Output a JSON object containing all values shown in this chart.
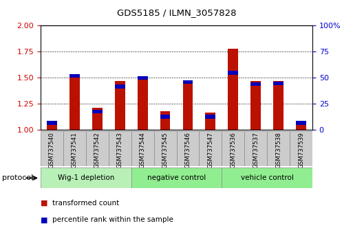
{
  "title": "GDS5185 / ILMN_3057828",
  "samples": [
    "GSM737540",
    "GSM737541",
    "GSM737542",
    "GSM737543",
    "GSM737544",
    "GSM737545",
    "GSM737546",
    "GSM737547",
    "GSM737536",
    "GSM737537",
    "GSM737538",
    "GSM737539"
  ],
  "red_values": [
    1.09,
    1.52,
    1.21,
    1.47,
    1.51,
    1.18,
    1.47,
    1.17,
    1.78,
    1.47,
    1.47,
    1.09
  ],
  "blue_values": [
    1.05,
    1.5,
    1.16,
    1.4,
    1.48,
    1.11,
    1.44,
    1.11,
    1.53,
    1.42,
    1.43,
    1.05
  ],
  "ylim_left": [
    1.0,
    2.0
  ],
  "ylim_right": [
    0,
    100
  ],
  "yticks_left": [
    1.0,
    1.25,
    1.5,
    1.75,
    2.0
  ],
  "yticks_right": [
    0,
    25,
    50,
    75,
    100
  ],
  "groups": [
    {
      "label": "Wig-1 depletion",
      "start": 0,
      "end": 4
    },
    {
      "label": "negative control",
      "start": 4,
      "end": 8
    },
    {
      "label": "vehicle control",
      "start": 8,
      "end": 12
    }
  ],
  "group_color_light": "#b8f0b8",
  "group_color_mid": "#90ee90",
  "group_border": "#888888",
  "bar_color_red": "#bb1100",
  "bar_color_blue": "#0000bb",
  "bar_width": 0.45,
  "blue_bar_width": 0.45,
  "blue_bar_height": 0.035,
  "tick_label_color_left": "#cc0000",
  "tick_label_color_right": "#0000cc",
  "tick_box_color": "#cccccc",
  "tick_box_border": "#888888",
  "bg_plot": "white",
  "legend_red": "transformed count",
  "legend_blue": "percentile rank within the sample",
  "protocol_label": "protocol"
}
